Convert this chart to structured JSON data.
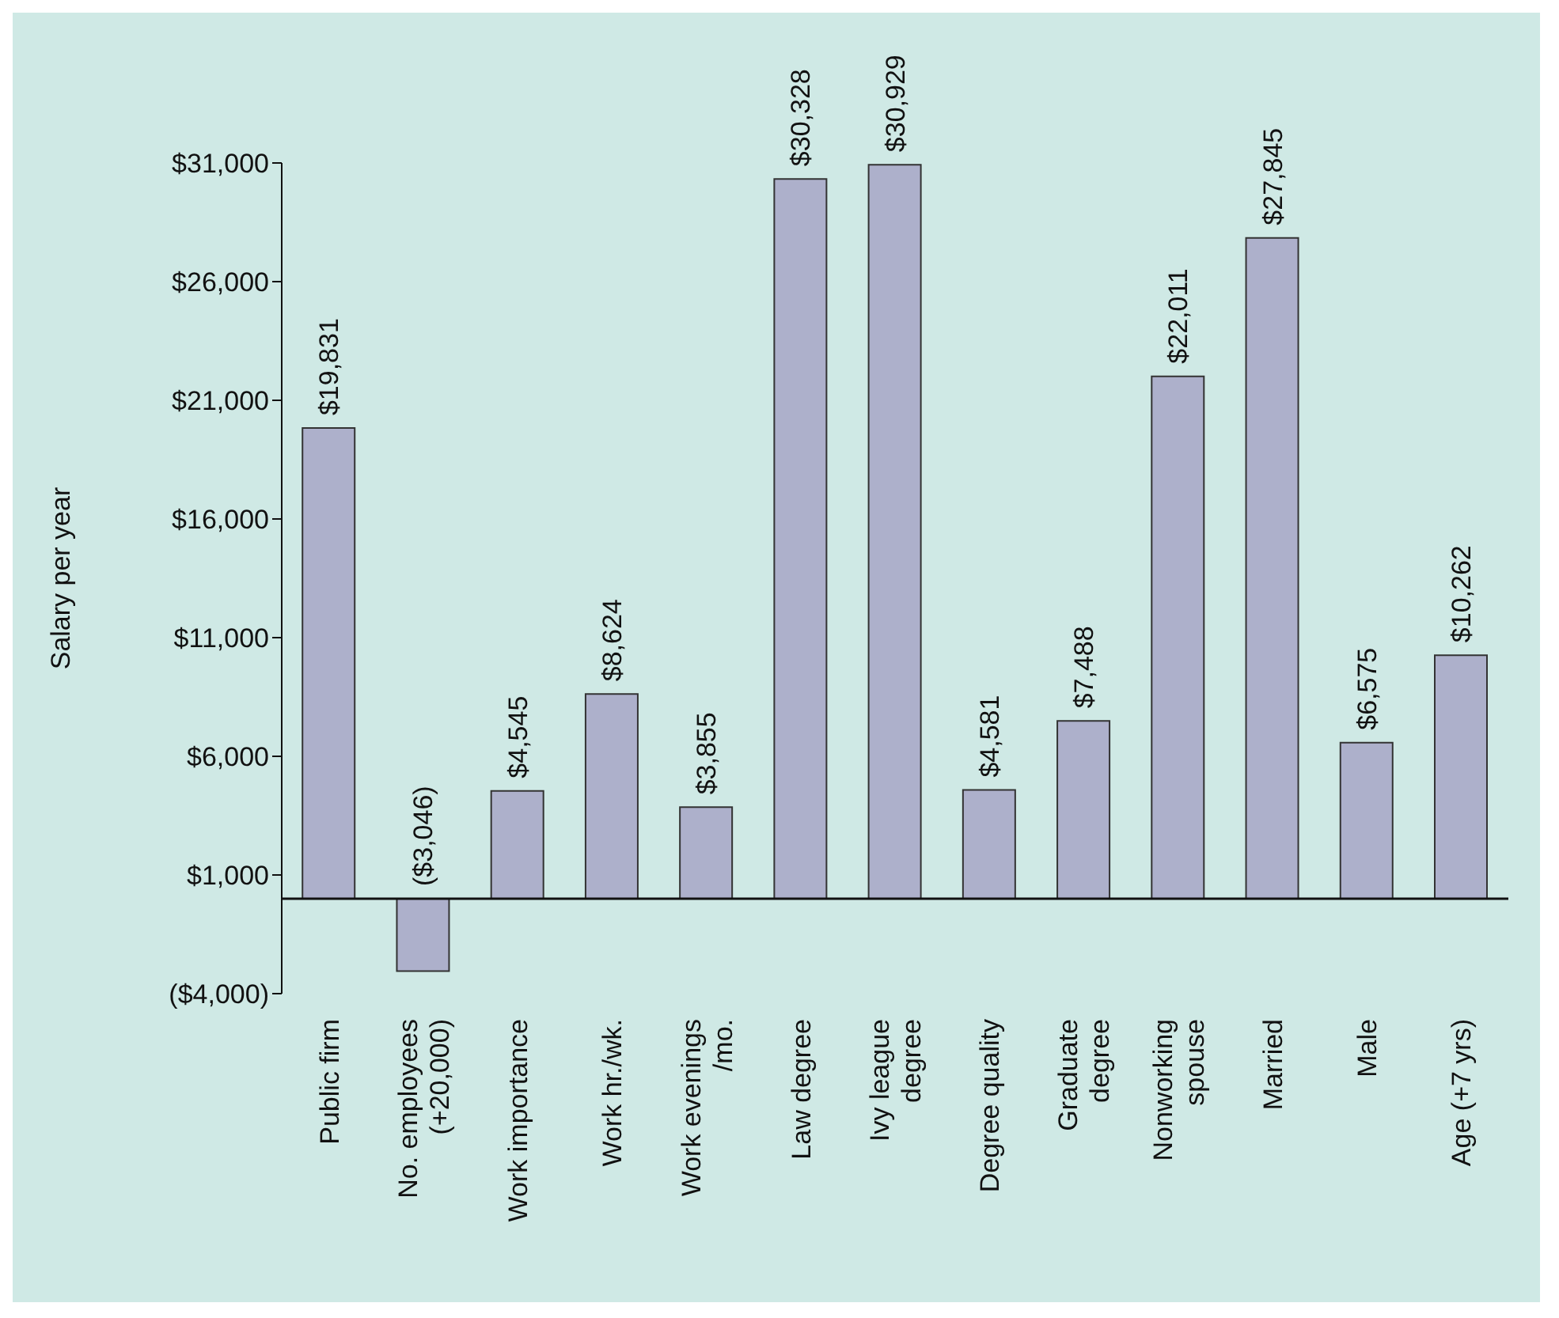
{
  "chart_data": {
    "type": "bar",
    "ylabel": "Salary per year",
    "categories": [
      "Public firm",
      "No. employees\n(+20,000)",
      "Work importance",
      "Work hr./wk.",
      "Work evenings\n/mo.",
      "Law degree",
      "Ivy league\ndegree",
      "Degree quality",
      "Graduate\ndegree",
      "Nonworking\nspouse",
      "Married",
      "Male",
      "Age (+7 yrs)"
    ],
    "values": [
      19831,
      -3046,
      4545,
      8624,
      3855,
      30328,
      30929,
      4581,
      7488,
      22011,
      27845,
      6575,
      10262
    ],
    "value_labels": [
      "$19,831",
      "($3,046)",
      "$4,545",
      "$8,624",
      "$3,855",
      "$30,328",
      "$30,929",
      "$4,581",
      "$7,488",
      "$22,011",
      "$27,845",
      "$6,575",
      "$10,262"
    ],
    "color": "#adb0cb",
    "ylim": [
      -4000,
      31000
    ],
    "yticks": [
      {
        "value": 31000,
        "label": "$31,000"
      },
      {
        "value": 26000,
        "label": "$26,000"
      },
      {
        "value": 21000,
        "label": "$21,000"
      },
      {
        "value": 16000,
        "label": "$16,000"
      },
      {
        "value": 11000,
        "label": "$11,000"
      },
      {
        "value": 6000,
        "label": "$6,000"
      },
      {
        "value": 1000,
        "label": "$1,000"
      },
      {
        "value": -4000,
        "label": "($4,000)"
      }
    ],
    "grid": false,
    "legend": false
  }
}
